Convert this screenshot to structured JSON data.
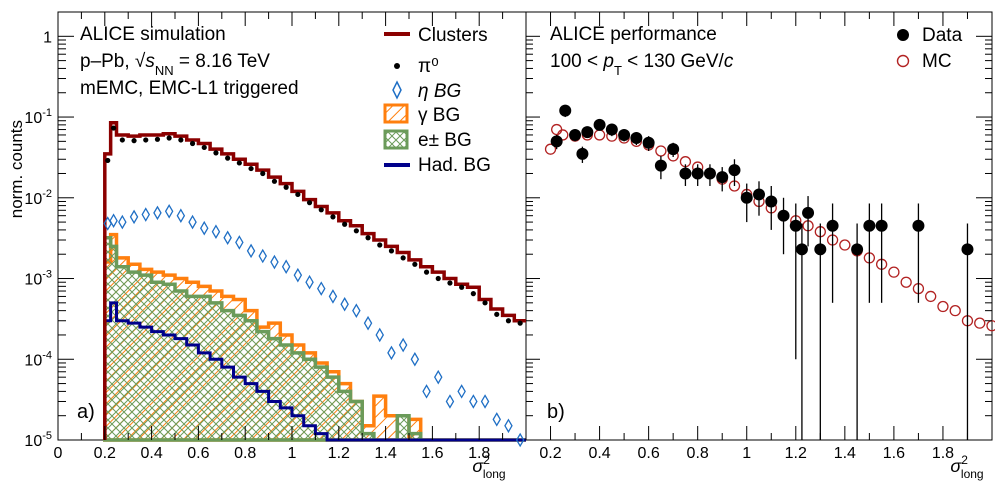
{
  "chart_data": [
    {
      "type": "histogram",
      "panel_label": "a)",
      "title_lines": [
        "ALICE simulation",
        "p–Pb, √s_NN = 8.16 TeV",
        "mEMC, EMC-L1 triggered"
      ],
      "ylabel": "norm. counts",
      "xlabel": "σ²_long",
      "xlim": [
        0,
        2.0
      ],
      "ylim": [
        1e-05,
        2
      ],
      "yscale": "log",
      "x_ticks": [
        "0",
        "0.2",
        "0.4",
        "0.6",
        "0.8",
        "1",
        "1.2",
        "1.4",
        "1.6",
        "1.8"
      ],
      "y_ticks": [
        "1",
        "10^-1",
        "10^-2",
        "10^-3",
        "10^-4",
        "10^-5"
      ],
      "legend_position": "top-right",
      "legend": [
        "Clusters",
        "π⁰",
        "η BG",
        "γ BG",
        "e± BG",
        "Had. BG"
      ],
      "colors": {
        "clusters": "#8b0000",
        "pi0": "#000000",
        "eta": "#1f6fc5",
        "gamma": "#ff7f0e",
        "electron": "#6b9b5a",
        "hadron": "#00008b"
      },
      "bin_edges": [
        0.2,
        0.225,
        0.25,
        0.3,
        0.35,
        0.4,
        0.45,
        0.5,
        0.55,
        0.6,
        0.65,
        0.7,
        0.75,
        0.8,
        0.85,
        0.9,
        0.95,
        1.0,
        1.05,
        1.1,
        1.15,
        1.2,
        1.25,
        1.3,
        1.35,
        1.4,
        1.45,
        1.5,
        1.55,
        1.6,
        1.65,
        1.7,
        1.75,
        1.8,
        1.85,
        1.9,
        1.95,
        2.0
      ],
      "series": [
        {
          "name": "Clusters",
          "kind": "step",
          "values": [
            0.035,
            0.085,
            0.06,
            0.058,
            0.06,
            0.06,
            0.062,
            0.058,
            0.052,
            0.047,
            0.04,
            0.035,
            0.03,
            0.026,
            0.022,
            0.018,
            0.015,
            0.012,
            0.0095,
            0.0078,
            0.0065,
            0.0052,
            0.0045,
            0.0036,
            0.003,
            0.0025,
            0.0021,
            0.0017,
            0.0014,
            0.0012,
            0.001,
            0.00085,
            0.00078,
            0.00055,
            0.00042,
            0.00035,
            0.0003
          ]
        },
        {
          "name": "π⁰",
          "kind": "points",
          "values": [
            0.029,
            0.073,
            0.052,
            0.051,
            0.052,
            0.053,
            0.055,
            0.052,
            0.047,
            0.042,
            0.036,
            0.031,
            0.027,
            0.023,
            0.02,
            0.016,
            0.0135,
            0.011,
            0.0087,
            0.0071,
            0.0058,
            0.0047,
            0.0039,
            0.0032,
            0.0026,
            0.0022,
            0.0018,
            0.0015,
            0.0012,
            0.001,
            0.00088,
            0.00078,
            0.00065,
            0.0005,
            0.00036,
            0.0003,
            0.00028
          ]
        },
        {
          "name": "η BG",
          "kind": "points",
          "values": [
            0.0048,
            0.0052,
            0.005,
            0.0058,
            0.0062,
            0.0065,
            0.0068,
            0.006,
            0.005,
            0.0042,
            0.0038,
            0.0032,
            0.0028,
            0.0022,
            0.0019,
            0.0016,
            0.0014,
            0.0011,
            0.0009,
            0.00075,
            0.0006,
            0.00048,
            0.0004,
            0.00028,
            0.0002,
            0.00012,
            0.00015,
            0.0001,
            4e-05,
            6e-05,
            3e-05,
            4e-05,
            3e-05,
            3e-05,
            1.8e-05,
            1.5e-05,
            1e-05
          ]
        },
        {
          "name": "γ BG",
          "kind": "hatched",
          "values": [
            0.0016,
            0.0035,
            0.0018,
            0.0015,
            0.0013,
            0.0012,
            0.0011,
            0.001,
            0.0009,
            0.0008,
            0.0007,
            0.0006,
            0.00055,
            0.0004,
            0.00025,
            0.00028,
            0.0002,
            0.00015,
            0.00012,
            9e-05,
            7e-05,
            5e-05,
            3e-05,
            1.5e-05,
            3.5e-05,
            2e-05,
            1e-05,
            1.8e-05,
            1e-05,
            1e-05,
            1e-05,
            1e-05,
            1e-05,
            1e-05,
            1e-05,
            1e-05,
            1e-05
          ]
        },
        {
          "name": "e± BG",
          "kind": "hatched",
          "values": [
            0.0032,
            0.0025,
            0.0014,
            0.0012,
            0.0011,
            0.0009,
            0.00085,
            0.0007,
            0.0006,
            0.0006,
            0.0005,
            0.0004,
            0.00035,
            0.0003,
            0.00022,
            0.00018,
            0.00015,
            0.00012,
            0.0001,
            8e-05,
            6e-05,
            4e-05,
            3e-05,
            1.2e-05,
            1e-05,
            1e-05,
            2e-05,
            1.2e-05,
            1e-05,
            1e-05,
            1e-05,
            1e-05,
            1e-05,
            1e-05,
            1e-05,
            1e-05,
            1e-05
          ]
        },
        {
          "name": "Had. BG",
          "kind": "step",
          "values": [
            0.0003,
            0.0005,
            0.0003,
            0.00028,
            0.00025,
            0.00022,
            0.0002,
            0.00018,
            0.00015,
            0.00012,
            0.0001,
            8e-05,
            6e-05,
            5e-05,
            4e-05,
            3e-05,
            2.5e-05,
            2e-05,
            1.5e-05,
            1.2e-05,
            1e-05,
            1e-05,
            1e-05,
            1e-05,
            1e-05,
            1e-05,
            1e-05,
            1e-05,
            1e-05,
            1e-05,
            1e-05,
            1e-05,
            1e-05,
            1e-05,
            1e-05,
            1e-05,
            1e-05
          ]
        }
      ]
    },
    {
      "type": "scatter",
      "panel_label": "b)",
      "title_lines": [
        "ALICE performance",
        "100 < p_T < 130 GeV/c"
      ],
      "xlabel": "σ²_long",
      "xlim": [
        0.1,
        2.0
      ],
      "ylim": [
        1e-05,
        2
      ],
      "yscale": "log",
      "x_ticks": [
        "0.2",
        "0.4",
        "0.6",
        "0.8",
        "1",
        "1.2",
        "1.4",
        "1.6",
        "1.8"
      ],
      "legend_position": "top-right",
      "legend": [
        "Data",
        "MC"
      ],
      "colors": {
        "data": "#000000",
        "mc": "#b22222"
      },
      "series": [
        {
          "name": "Data",
          "x": [
            0.225,
            0.26,
            0.3,
            0.33,
            0.35,
            0.4,
            0.45,
            0.5,
            0.55,
            0.6,
            0.65,
            0.7,
            0.75,
            0.8,
            0.85,
            0.9,
            0.95,
            1.0,
            1.05,
            1.1,
            1.15,
            1.2,
            1.225,
            1.25,
            1.3,
            1.35,
            1.45,
            1.5,
            1.55,
            1.7,
            1.9
          ],
          "y": [
            0.05,
            0.12,
            0.06,
            0.035,
            0.065,
            0.08,
            0.07,
            0.06,
            0.055,
            0.048,
            0.025,
            0.04,
            0.02,
            0.02,
            0.02,
            0.018,
            0.022,
            0.01,
            0.011,
            0.009,
            0.006,
            0.0045,
            0.0023,
            0.0065,
            0.0023,
            0.0045,
            0.0023,
            0.0045,
            0.0045,
            0.0045,
            0.0023
          ],
          "yerr_low": [
            0.01,
            0.02,
            0.01,
            0.008,
            0.01,
            0.012,
            0.012,
            0.01,
            0.01,
            0.01,
            0.008,
            0.008,
            0.006,
            0.006,
            0.006,
            0.006,
            0.008,
            0.005,
            0.005,
            0.005,
            0.004,
            0.0044,
            0.0023,
            0.004,
            0.0023,
            0.004,
            0.0023,
            0.004,
            0.004,
            0.004,
            0.0023
          ],
          "yerr_high": [
            0.01,
            0.02,
            0.01,
            0.008,
            0.01,
            0.012,
            0.012,
            0.01,
            0.01,
            0.01,
            0.008,
            0.008,
            0.006,
            0.006,
            0.006,
            0.006,
            0.008,
            0.005,
            0.005,
            0.005,
            0.004,
            0.004,
            0.0025,
            0.004,
            0.0025,
            0.004,
            0.0025,
            0.004,
            0.004,
            0.004,
            0.0025
          ]
        },
        {
          "name": "MC",
          "x": [
            0.2,
            0.225,
            0.25,
            0.3,
            0.35,
            0.4,
            0.45,
            0.5,
            0.55,
            0.6,
            0.65,
            0.7,
            0.75,
            0.8,
            0.85,
            0.9,
            0.95,
            1.0,
            1.05,
            1.1,
            1.15,
            1.2,
            1.25,
            1.3,
            1.35,
            1.4,
            1.45,
            1.5,
            1.55,
            1.6,
            1.65,
            1.7,
            1.75,
            1.8,
            1.85,
            1.9,
            1.95,
            2.0
          ],
          "y": [
            0.04,
            0.07,
            0.06,
            0.058,
            0.06,
            0.06,
            0.058,
            0.055,
            0.05,
            0.045,
            0.038,
            0.033,
            0.028,
            0.024,
            0.02,
            0.017,
            0.014,
            0.011,
            0.009,
            0.0075,
            0.006,
            0.0052,
            0.0045,
            0.0038,
            0.003,
            0.0026,
            0.0022,
            0.0018,
            0.0015,
            0.0012,
            0.0009,
            0.00075,
            0.0006,
            0.00045,
            0.0004,
            0.0003,
            0.00028,
            0.00026
          ]
        }
      ]
    }
  ]
}
